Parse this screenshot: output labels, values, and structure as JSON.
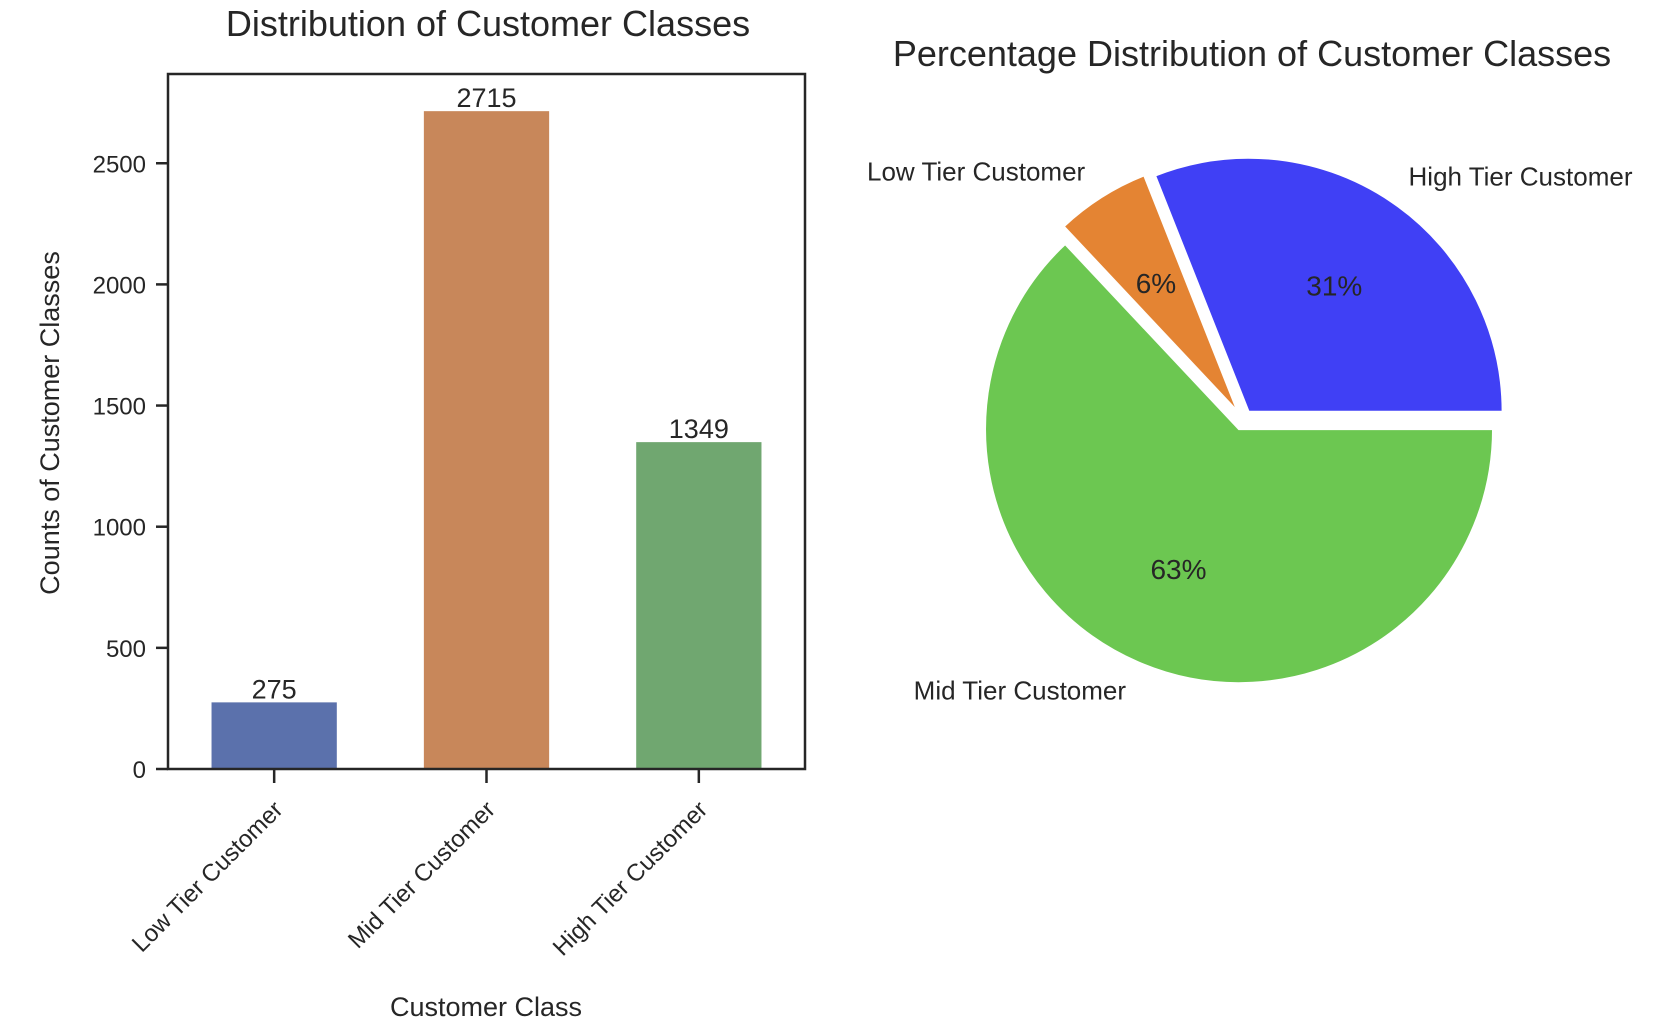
{
  "chart_data": [
    {
      "type": "bar",
      "title": "Distribution of Customer Classes",
      "xlabel": "Customer Class",
      "ylabel": "Counts of Customer Classes",
      "categories": [
        "Low Tier Customer",
        "Mid Tier Customer",
        "High Tier Customer"
      ],
      "values": [
        275,
        2715,
        1349
      ],
      "data_labels": [
        "275",
        "2715",
        "1349"
      ],
      "colors": [
        "#5b71ac",
        "#c8875a",
        "#70a770"
      ],
      "ylim": [
        0,
        2850
      ],
      "yticks": [
        0,
        500,
        1000,
        1500,
        2000,
        2500
      ],
      "grid": false
    },
    {
      "type": "pie",
      "title": "Percentage Distribution of Customer Classes",
      "slices": [
        {
          "label": "High Tier Customer",
          "value": 31,
          "pct_label": "31%",
          "color": "#4040f5"
        },
        {
          "label": "Low Tier Customer",
          "value": 6,
          "pct_label": "6%",
          "color": "#e48433"
        },
        {
          "label": "Mid Tier Customer",
          "value": 63,
          "pct_label": "63%",
          "color": "#6cc751"
        }
      ]
    }
  ]
}
